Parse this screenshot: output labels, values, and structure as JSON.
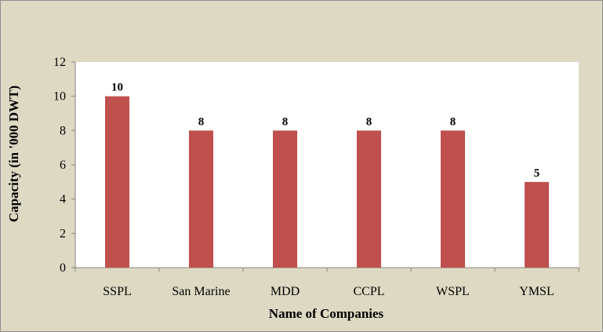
{
  "chart_data": {
    "type": "bar",
    "title": "",
    "xlabel": "Name of Companies",
    "ylabel": "Capacity (in '000 DWT)",
    "categories": [
      "SSPL",
      "San Marine",
      "MDD",
      "CCPL",
      "WSPL",
      "YMSL"
    ],
    "values": [
      10,
      8,
      8,
      8,
      8,
      5
    ],
    "data_labels": [
      "10",
      "8",
      "8",
      "8",
      "8",
      "5"
    ],
    "ylim": [
      0,
      12
    ],
    "yticks": [
      0,
      2,
      4,
      6,
      8,
      10,
      12
    ],
    "ytick_labels": [
      "0",
      "2",
      "4",
      "6",
      "8",
      "10",
      "12"
    ],
    "grid": false,
    "legend": "none",
    "colors": {
      "bar": "#c0504d",
      "frame_background": "#ddd9c3",
      "plot_background": "#ffffff"
    }
  }
}
